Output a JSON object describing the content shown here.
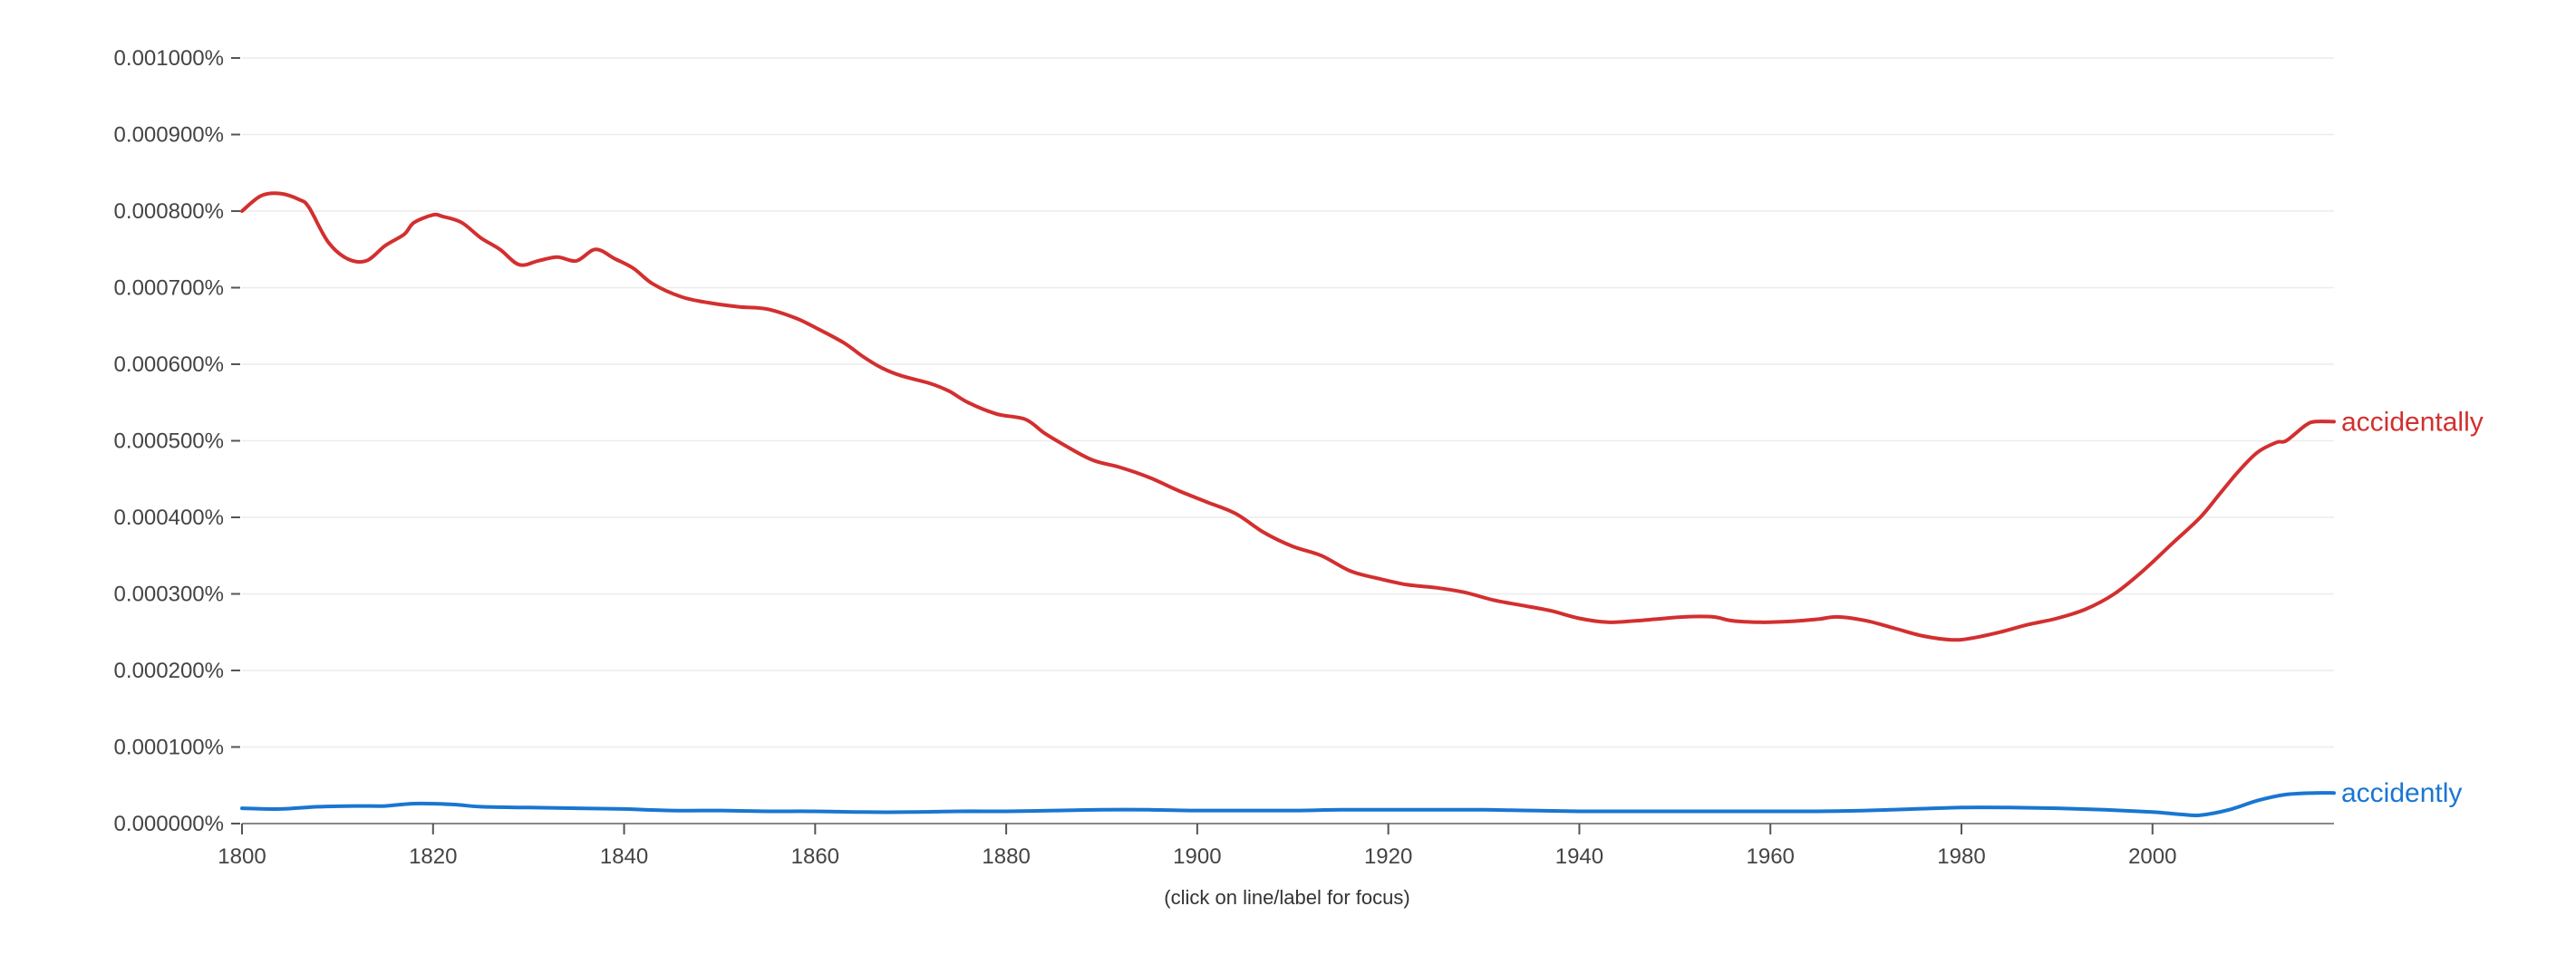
{
  "chart_data": {
    "type": "line",
    "note": "(click on line/label for focus)",
    "x_ticks": [
      "1800",
      "1820",
      "1840",
      "1860",
      "1880",
      "1900",
      "1920",
      "1940",
      "1960",
      "1980",
      "2000"
    ],
    "y_ticks": [
      "0.000000%",
      "0.000100%",
      "0.000200%",
      "0.000300%",
      "0.000400%",
      "0.000500%",
      "0.000600%",
      "0.000700%",
      "0.000800%",
      "0.000900%",
      "0.001000%"
    ],
    "xlim": [
      1800,
      2019
    ],
    "ylim": [
      0,
      0.001
    ],
    "grid": true,
    "legend": "line-end labels",
    "series": [
      {
        "name": "accidentally",
        "color": "#d32f2f",
        "points": [
          [
            1800,
            0.0008
          ],
          [
            1802,
            0.00082
          ],
          [
            1804,
            0.000823
          ],
          [
            1806,
            0.000815
          ],
          [
            1807,
            0.000805
          ],
          [
            1809,
            0.00076
          ],
          [
            1811,
            0.000738
          ],
          [
            1813,
            0.000735
          ],
          [
            1815,
            0.000755
          ],
          [
            1817,
            0.00077
          ],
          [
            1818,
            0.000785
          ],
          [
            1820,
            0.000795
          ],
          [
            1821,
            0.000793
          ],
          [
            1823,
            0.000785
          ],
          [
            1825,
            0.000765
          ],
          [
            1827,
            0.00075
          ],
          [
            1829,
            0.00073
          ],
          [
            1831,
            0.000735
          ],
          [
            1833,
            0.00074
          ],
          [
            1835,
            0.000735
          ],
          [
            1837,
            0.00075
          ],
          [
            1839,
            0.000738
          ],
          [
            1841,
            0.000725
          ],
          [
            1843,
            0.000705
          ],
          [
            1846,
            0.000688
          ],
          [
            1849,
            0.00068
          ],
          [
            1852,
            0.000675
          ],
          [
            1855,
            0.000672
          ],
          [
            1858,
            0.00066
          ],
          [
            1860,
            0.000648
          ],
          [
            1863,
            0.000628
          ],
          [
            1865,
            0.00061
          ],
          [
            1867,
            0.000595
          ],
          [
            1869,
            0.000585
          ],
          [
            1872,
            0.000575
          ],
          [
            1874,
            0.000565
          ],
          [
            1876,
            0.00055
          ],
          [
            1879,
            0.000535
          ],
          [
            1882,
            0.000528
          ],
          [
            1884,
            0.00051
          ],
          [
            1886,
            0.000495
          ],
          [
            1889,
            0.000475
          ],
          [
            1892,
            0.000465
          ],
          [
            1895,
            0.000452
          ],
          [
            1898,
            0.000435
          ],
          [
            1901,
            0.00042
          ],
          [
            1904,
            0.000405
          ],
          [
            1907,
            0.00038
          ],
          [
            1910,
            0.000362
          ],
          [
            1913,
            0.00035
          ],
          [
            1916,
            0.00033
          ],
          [
            1919,
            0.00032
          ],
          [
            1922,
            0.000312
          ],
          [
            1925,
            0.000308
          ],
          [
            1928,
            0.000302
          ],
          [
            1931,
            0.000292
          ],
          [
            1934,
            0.000285
          ],
          [
            1937,
            0.000278
          ],
          [
            1940,
            0.000268
          ],
          [
            1943,
            0.000263
          ],
          [
            1946,
            0.000265
          ],
          [
            1948,
            0.000267
          ],
          [
            1951,
            0.00027
          ],
          [
            1954,
            0.00027
          ],
          [
            1956,
            0.000265
          ],
          [
            1959,
            0.000263
          ],
          [
            1962,
            0.000264
          ],
          [
            1965,
            0.000267
          ],
          [
            1967,
            0.00027
          ],
          [
            1970,
            0.000265
          ],
          [
            1973,
            0.000255
          ],
          [
            1976,
            0.000245
          ],
          [
            1979,
            0.00024
          ],
          [
            1981,
            0.000242
          ],
          [
            1984,
            0.00025
          ],
          [
            1987,
            0.00026
          ],
          [
            1990,
            0.000268
          ],
          [
            1993,
            0.00028
          ],
          [
            1996,
            0.0003
          ],
          [
            1999,
            0.00033
          ],
          [
            2002,
            0.000365
          ],
          [
            2005,
            0.0004
          ],
          [
            2007,
            0.00043
          ],
          [
            2009,
            0.00046
          ],
          [
            2011,
            0.000485
          ],
          [
            2013,
            0.000498
          ],
          [
            2014,
            0.0005
          ],
          [
            2016,
            0.00052
          ],
          [
            2017,
            0.000525
          ],
          [
            2019,
            0.000525
          ]
        ]
      },
      {
        "name": "accidently",
        "color": "#1976d2",
        "points": [
          [
            1800,
            2e-05
          ],
          [
            1804,
            1.9e-05
          ],
          [
            1808,
            2.2e-05
          ],
          [
            1812,
            2.3e-05
          ],
          [
            1815,
            2.3e-05
          ],
          [
            1818,
            2.6e-05
          ],
          [
            1822,
            2.5e-05
          ],
          [
            1825,
            2.2e-05
          ],
          [
            1830,
            2.1e-05
          ],
          [
            1835,
            2e-05
          ],
          [
            1840,
            1.9e-05
          ],
          [
            1845,
            1.7e-05
          ],
          [
            1850,
            1.7e-05
          ],
          [
            1855,
            1.6e-05
          ],
          [
            1860,
            1.6e-05
          ],
          [
            1865,
            1.5e-05
          ],
          [
            1870,
            1.5e-05
          ],
          [
            1875,
            1.6e-05
          ],
          [
            1880,
            1.6e-05
          ],
          [
            1885,
            1.7e-05
          ],
          [
            1890,
            1.8e-05
          ],
          [
            1895,
            1.8e-05
          ],
          [
            1900,
            1.7e-05
          ],
          [
            1905,
            1.7e-05
          ],
          [
            1910,
            1.7e-05
          ],
          [
            1915,
            1.8e-05
          ],
          [
            1920,
            1.8e-05
          ],
          [
            1925,
            1.8e-05
          ],
          [
            1930,
            1.8e-05
          ],
          [
            1935,
            1.7e-05
          ],
          [
            1940,
            1.6e-05
          ],
          [
            1945,
            1.6e-05
          ],
          [
            1950,
            1.6e-05
          ],
          [
            1955,
            1.6e-05
          ],
          [
            1960,
            1.6e-05
          ],
          [
            1965,
            1.6e-05
          ],
          [
            1970,
            1.7e-05
          ],
          [
            1975,
            1.9e-05
          ],
          [
            1980,
            2.1e-05
          ],
          [
            1985,
            2.1e-05
          ],
          [
            1990,
            2e-05
          ],
          [
            1995,
            1.8e-05
          ],
          [
            2000,
            1.5e-05
          ],
          [
            2003,
            1.2e-05
          ],
          [
            2005,
            1.1e-05
          ],
          [
            2008,
            1.8e-05
          ],
          [
            2011,
            3e-05
          ],
          [
            2014,
            3.8e-05
          ],
          [
            2017,
            4e-05
          ],
          [
            2019,
            4e-05
          ]
        ]
      }
    ]
  }
}
